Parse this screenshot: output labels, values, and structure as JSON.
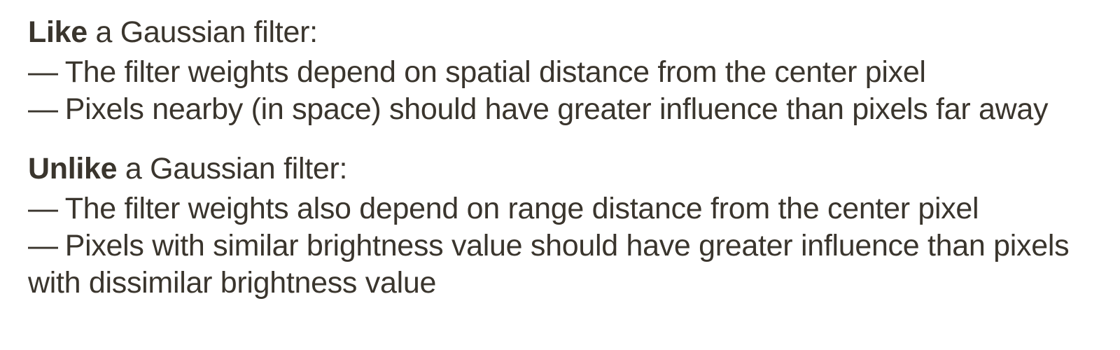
{
  "like_section": {
    "bold": "Like",
    "rest": " a Gaussian filter:",
    "bullets": [
      {
        "dash": "—",
        "text": "The filter weights depend on spatial distance from the center pixel"
      },
      {
        "dash": "—",
        "text": "Pixels nearby (in space) should have greater influence than pixels far away"
      }
    ]
  },
  "unlike_section": {
    "bold": "Unlike",
    "rest": " a Gaussian filter:",
    "bullets": [
      {
        "dash": "—",
        "text": "The filter weights also depend on range distance from the center pixel"
      },
      {
        "dash": "—",
        "text": "Pixels with similar brightness value should have greater influence than pixels with dissimilar brightness value"
      }
    ]
  }
}
